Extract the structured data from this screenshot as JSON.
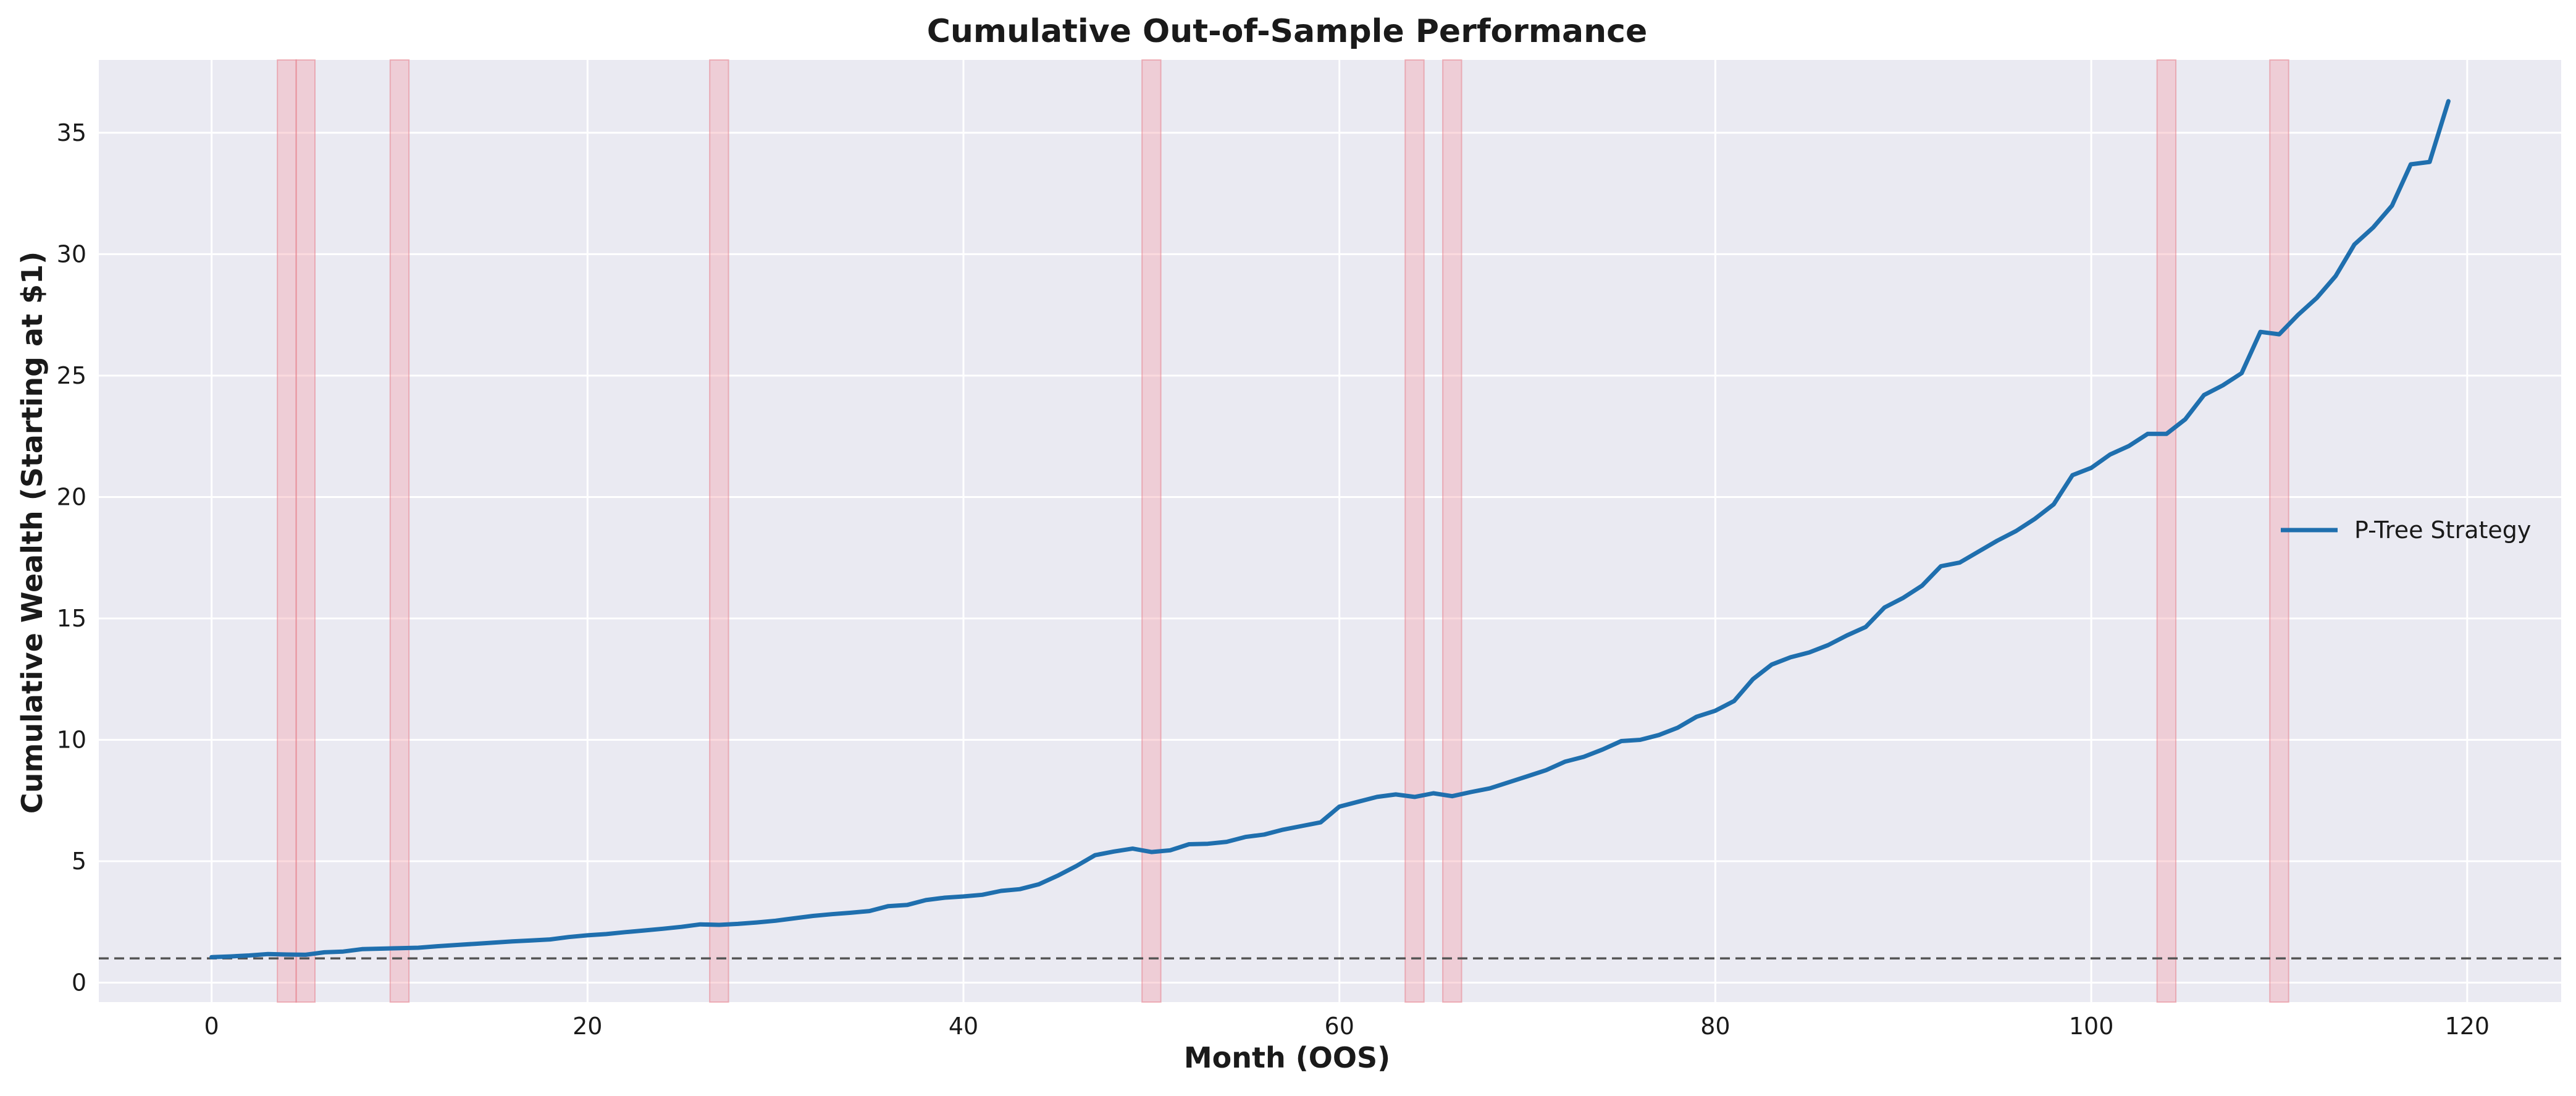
{
  "chart_data": {
    "type": "line",
    "title": "Cumulative Out-of-Sample Performance",
    "xlabel": "Month (OOS)",
    "ylabel": "Cumulative Wealth (Starting at $1)",
    "xlim": [
      -6,
      125
    ],
    "ylim": [
      -0.8,
      38
    ],
    "xticks": [
      0,
      20,
      40,
      60,
      80,
      100,
      120
    ],
    "yticks": [
      0,
      5,
      10,
      15,
      20,
      25,
      30,
      35
    ],
    "grid": true,
    "legend_position": "center-right",
    "background_color": "#eaeaf2",
    "grid_color": "#ffffff",
    "baseline": {
      "y": 1,
      "style": "dashed",
      "color": "#555555"
    },
    "shaded_month_ranges": [
      [
        3.5,
        4.5
      ],
      [
        4.5,
        5.5
      ],
      [
        9.5,
        10.5
      ],
      [
        26.5,
        27.5
      ],
      [
        49.5,
        50.5
      ],
      [
        63.5,
        64.5
      ],
      [
        65.5,
        66.5
      ],
      [
        103.5,
        104.5
      ],
      [
        109.5,
        110.5
      ]
    ],
    "shade_color": "#f5a3ad",
    "series": [
      {
        "name": "P-Tree Strategy",
        "color": "#1f6fae",
        "x": [
          0,
          1,
          2,
          3,
          4,
          5,
          6,
          7,
          8,
          9,
          10,
          11,
          12,
          13,
          14,
          15,
          16,
          17,
          18,
          19,
          20,
          21,
          22,
          23,
          24,
          25,
          26,
          27,
          28,
          29,
          30,
          31,
          32,
          33,
          34,
          35,
          36,
          37,
          38,
          39,
          40,
          41,
          42,
          43,
          44,
          45,
          46,
          47,
          48,
          49,
          50,
          51,
          52,
          53,
          54,
          55,
          56,
          57,
          58,
          59,
          60,
          61,
          62,
          63,
          64,
          65,
          66,
          67,
          68,
          69,
          70,
          71,
          72,
          73,
          74,
          75,
          76,
          77,
          78,
          79,
          80,
          81,
          82,
          83,
          84,
          85,
          86,
          87,
          88,
          89,
          90,
          91,
          92,
          93,
          94,
          95,
          96,
          97,
          98,
          99,
          100,
          101,
          102,
          103,
          104,
          105,
          106,
          107,
          108,
          109,
          110,
          111,
          112,
          113,
          114,
          115,
          116,
          117,
          118,
          119
        ],
        "values": [
          1.05,
          1.08,
          1.12,
          1.18,
          1.16,
          1.15,
          1.25,
          1.28,
          1.38,
          1.4,
          1.42,
          1.44,
          1.5,
          1.55,
          1.6,
          1.65,
          1.7,
          1.74,
          1.78,
          1.88,
          1.95,
          2.0,
          2.08,
          2.15,
          2.22,
          2.3,
          2.4,
          2.38,
          2.42,
          2.48,
          2.55,
          2.65,
          2.75,
          2.82,
          2.88,
          2.95,
          3.15,
          3.2,
          3.4,
          3.5,
          3.55,
          3.62,
          3.78,
          3.85,
          4.05,
          4.4,
          4.8,
          5.25,
          5.4,
          5.52,
          5.38,
          5.45,
          5.7,
          5.72,
          5.8,
          6.0,
          6.1,
          6.3,
          6.45,
          6.6,
          7.25,
          7.45,
          7.65,
          7.75,
          7.65,
          7.8,
          7.68,
          7.85,
          8.0,
          8.25,
          8.5,
          8.75,
          9.1,
          9.3,
          9.6,
          9.95,
          10.0,
          10.2,
          10.5,
          10.95,
          11.2,
          11.6,
          12.5,
          13.1,
          13.4,
          13.6,
          13.9,
          14.3,
          14.65,
          15.45,
          15.85,
          16.35,
          17.15,
          17.3,
          17.75,
          18.2,
          18.6,
          19.1,
          19.7,
          20.9,
          21.2,
          21.75,
          22.1,
          22.6,
          22.6,
          23.2,
          24.2,
          24.6,
          25.1,
          26.8,
          26.7,
          27.5,
          28.2,
          29.1,
          30.4,
          31.1,
          32.0,
          33.7,
          33.8,
          36.3
        ]
      }
    ]
  }
}
